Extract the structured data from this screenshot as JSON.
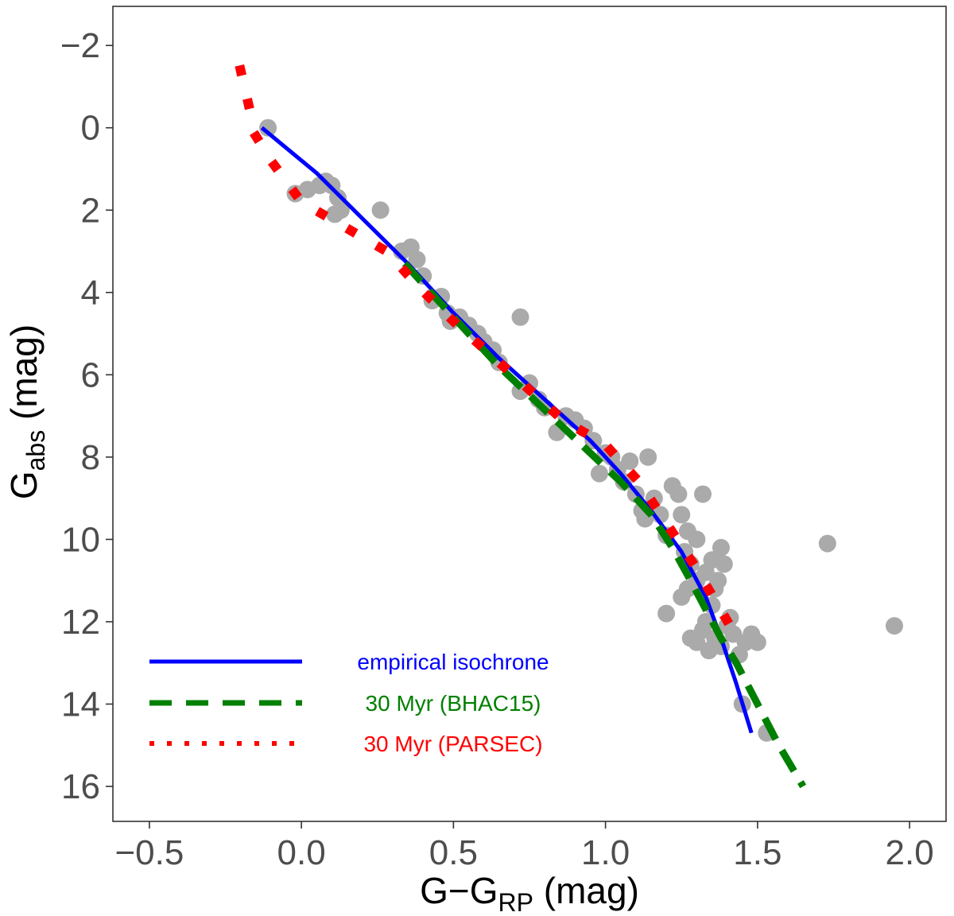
{
  "chart_data": {
    "type": "scatter",
    "title": "",
    "xlabel": {
      "main": "G−G",
      "sub": "RP",
      "unit": " (mag)"
    },
    "ylabel": {
      "main": "G",
      "sub": "abs",
      "unit": " (mag)"
    },
    "xlim": [
      -0.62,
      2.12
    ],
    "ylim": [
      -2.95,
      16.85
    ],
    "y_inverted": true,
    "grid": false,
    "x_ticks": [
      {
        "value": -0.5,
        "label": "−0.5"
      },
      {
        "value": 0.0,
        "label": "0.0"
      },
      {
        "value": 0.5,
        "label": "0.5"
      },
      {
        "value": 1.0,
        "label": "1.0"
      },
      {
        "value": 1.5,
        "label": "1.5"
      },
      {
        "value": 2.0,
        "label": "2.0"
      }
    ],
    "y_ticks": [
      {
        "value": -2,
        "label": "−2"
      },
      {
        "value": 0,
        "label": "0"
      },
      {
        "value": 2,
        "label": "2"
      },
      {
        "value": 4,
        "label": "4"
      },
      {
        "value": 6,
        "label": "6"
      },
      {
        "value": 8,
        "label": "8"
      },
      {
        "value": 10,
        "label": "10"
      },
      {
        "value": 12,
        "label": "12"
      },
      {
        "value": 14,
        "label": "14"
      },
      {
        "value": 16,
        "label": "16"
      }
    ],
    "legend_position": "bottom-left",
    "points": {
      "color": "#aaaaaa",
      "data": [
        [
          -0.11,
          0.0
        ],
        [
          -0.02,
          1.6
        ],
        [
          0.02,
          1.5
        ],
        [
          0.06,
          1.4
        ],
        [
          0.08,
          1.3
        ],
        [
          0.1,
          1.4
        ],
        [
          0.12,
          1.7
        ],
        [
          0.11,
          2.1
        ],
        [
          0.13,
          2.0
        ],
        [
          0.26,
          2.0
        ],
        [
          0.33,
          3.0
        ],
        [
          0.36,
          2.9
        ],
        [
          0.38,
          3.2
        ],
        [
          0.4,
          3.6
        ],
        [
          0.43,
          4.2
        ],
        [
          0.46,
          4.1
        ],
        [
          0.48,
          4.5
        ],
        [
          0.49,
          4.7
        ],
        [
          0.52,
          4.6
        ],
        [
          0.55,
          4.8
        ],
        [
          0.58,
          5.0
        ],
        [
          0.6,
          5.2
        ],
        [
          0.63,
          5.4
        ],
        [
          0.65,
          5.7
        ],
        [
          0.72,
          4.6
        ],
        [
          0.72,
          6.4
        ],
        [
          0.75,
          6.2
        ],
        [
          0.78,
          6.6
        ],
        [
          0.8,
          6.8
        ],
        [
          0.84,
          7.4
        ],
        [
          0.87,
          7.0
        ],
        [
          0.9,
          7.1
        ],
        [
          0.93,
          7.3
        ],
        [
          0.96,
          7.6
        ],
        [
          0.98,
          8.4
        ],
        [
          1.0,
          7.9
        ],
        [
          1.02,
          8.0
        ],
        [
          1.04,
          8.3
        ],
        [
          1.06,
          8.6
        ],
        [
          1.08,
          8.1
        ],
        [
          1.1,
          8.9
        ],
        [
          1.12,
          9.3
        ],
        [
          1.14,
          8.0
        ],
        [
          1.13,
          9.5
        ],
        [
          1.16,
          9.0
        ],
        [
          1.18,
          9.4
        ],
        [
          1.2,
          9.9
        ],
        [
          1.22,
          8.7
        ],
        [
          1.24,
          8.9
        ],
        [
          1.25,
          9.4
        ],
        [
          1.27,
          9.8
        ],
        [
          1.26,
          10.3
        ],
        [
          1.28,
          10.6
        ],
        [
          1.3,
          10.0
        ],
        [
          1.32,
          8.9
        ],
        [
          1.3,
          11.0
        ],
        [
          1.33,
          10.8
        ],
        [
          1.35,
          10.5
        ],
        [
          1.36,
          11.2
        ],
        [
          1.38,
          10.2
        ],
        [
          1.39,
          10.6
        ],
        [
          1.2,
          11.8
        ],
        [
          1.25,
          11.4
        ],
        [
          1.28,
          12.4
        ],
        [
          1.3,
          12.5
        ],
        [
          1.32,
          12.2
        ],
        [
          1.34,
          12.7
        ],
        [
          1.36,
          12.4
        ],
        [
          1.38,
          12.6
        ],
        [
          1.4,
          12.1
        ],
        [
          1.42,
          12.3
        ],
        [
          1.44,
          12.8
        ],
        [
          1.46,
          12.5
        ],
        [
          1.48,
          12.3
        ],
        [
          1.5,
          12.5
        ],
        [
          1.45,
          14.0
        ],
        [
          1.53,
          14.7
        ],
        [
          1.73,
          10.1
        ],
        [
          1.95,
          12.1
        ],
        [
          1.35,
          11.6
        ],
        [
          1.33,
          12.0
        ],
        [
          1.41,
          11.9
        ],
        [
          1.37,
          11.0
        ],
        [
          1.27,
          11.2
        ]
      ]
    },
    "series": [
      {
        "name": "empirical isochrone",
        "color": "#0000ff",
        "style": "solid",
        "x": [
          -0.13,
          0.05,
          0.2,
          0.35,
          0.5,
          0.65,
          0.8,
          0.95,
          1.05,
          1.15,
          1.25,
          1.33,
          1.38,
          1.43,
          1.48
        ],
        "y": [
          0.0,
          1.1,
          2.2,
          3.3,
          4.5,
          5.6,
          6.6,
          7.6,
          8.4,
          9.3,
          10.3,
          11.4,
          12.4,
          13.5,
          14.7
        ]
      },
      {
        "name": "30 Myr (BHAC15)",
        "color": "#008000",
        "style": "dashed",
        "x": [
          0.34,
          0.45,
          0.55,
          0.65,
          0.75,
          0.85,
          0.95,
          1.05,
          1.15,
          1.22,
          1.28,
          1.33,
          1.38,
          1.43,
          1.5,
          1.57,
          1.65
        ],
        "y": [
          3.3,
          4.2,
          5.0,
          5.8,
          6.5,
          7.2,
          7.9,
          8.6,
          9.4,
          10.2,
          11.0,
          11.7,
          12.4,
          13.0,
          14.0,
          15.0,
          16.0
        ]
      },
      {
        "name": "30 Myr (PARSEC)",
        "color": "#ff0000",
        "style": "dotted",
        "x": [
          -0.2,
          -0.15,
          -0.09,
          0.0,
          0.14,
          0.28,
          0.39,
          0.5,
          0.62,
          0.74,
          0.86,
          1.0,
          1.11,
          1.2,
          1.29,
          1.37,
          1.45
        ],
        "y": [
          -1.4,
          0.2,
          0.9,
          1.8,
          2.4,
          3.0,
          3.9,
          4.7,
          5.5,
          6.3,
          7.1,
          7.7,
          8.6,
          9.6,
          10.6,
          11.6,
          12.6
        ]
      }
    ]
  }
}
